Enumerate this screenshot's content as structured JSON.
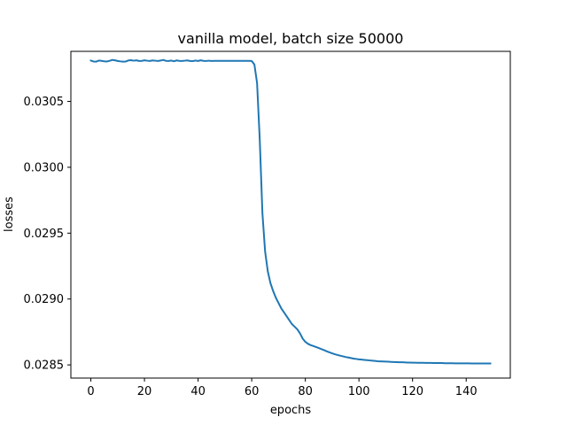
{
  "chart_data": {
    "type": "line",
    "title": "vanilla model, batch size 50000",
    "xlabel": "epochs",
    "ylabel": "losses",
    "xlim": [
      -7.45,
      156.45
    ],
    "ylim": [
      0.0284,
      0.03088
    ],
    "xticks": [
      0,
      20,
      40,
      60,
      80,
      100,
      120,
      140
    ],
    "xtick_labels": [
      "0",
      "20",
      "40",
      "60",
      "80",
      "100",
      "120",
      "140"
    ],
    "yticks": [
      0.0285,
      0.029,
      0.0295,
      0.03,
      0.0305
    ],
    "ytick_labels": [
      "0.0285",
      "0.0290",
      "0.0295",
      "0.0300",
      "0.0305"
    ],
    "grid": false,
    "line_color": "#1f77b4",
    "x": [
      0,
      1,
      2,
      3,
      4,
      5,
      6,
      7,
      8,
      9,
      10,
      11,
      12,
      13,
      14,
      15,
      16,
      17,
      18,
      19,
      20,
      21,
      22,
      23,
      24,
      25,
      26,
      27,
      28,
      29,
      30,
      31,
      32,
      33,
      34,
      35,
      36,
      37,
      38,
      39,
      40,
      41,
      42,
      43,
      44,
      45,
      46,
      47,
      48,
      49,
      50,
      51,
      52,
      53,
      54,
      55,
      56,
      57,
      58,
      59,
      60,
      61,
      62,
      63,
      64,
      65,
      66,
      67,
      68,
      69,
      70,
      71,
      72,
      73,
      74,
      75,
      76,
      77,
      78,
      79,
      80,
      81,
      82,
      83,
      84,
      85,
      86,
      87,
      88,
      89,
      90,
      91,
      92,
      93,
      94,
      95,
      96,
      97,
      98,
      99,
      100,
      101,
      102,
      103,
      104,
      105,
      106,
      107,
      108,
      109,
      110,
      111,
      112,
      113,
      114,
      115,
      116,
      117,
      118,
      119,
      120,
      121,
      122,
      123,
      124,
      125,
      126,
      127,
      128,
      129,
      130,
      131,
      132,
      133,
      134,
      135,
      136,
      137,
      138,
      139,
      140,
      141,
      142,
      143,
      144,
      145,
      146,
      147,
      148,
      149
    ],
    "y": [
      0.03081,
      0.030803,
      0.030802,
      0.03081,
      0.030808,
      0.030804,
      0.030803,
      0.030808,
      0.030815,
      0.030812,
      0.030807,
      0.030804,
      0.030802,
      0.030803,
      0.030811,
      0.030813,
      0.030809,
      0.030812,
      0.030807,
      0.030808,
      0.030812,
      0.030809,
      0.030807,
      0.030811,
      0.030809,
      0.030807,
      0.03081,
      0.030815,
      0.030808,
      0.030807,
      0.03081,
      0.030805,
      0.030811,
      0.030808,
      0.030807,
      0.030809,
      0.030811,
      0.030807,
      0.030806,
      0.03081,
      0.030807,
      0.030812,
      0.030808,
      0.030807,
      0.030809,
      0.030807,
      0.030808,
      0.030808,
      0.030808,
      0.030808,
      0.030808,
      0.030808,
      0.030808,
      0.030808,
      0.030808,
      0.030808,
      0.030808,
      0.030808,
      0.030808,
      0.030808,
      0.030807,
      0.03078,
      0.03064,
      0.03021,
      0.02965,
      0.02936,
      0.02921,
      0.02912,
      0.02906,
      0.02901,
      0.02897,
      0.02893,
      0.0289,
      0.02887,
      0.02884,
      0.02881,
      0.02879,
      0.02877,
      0.02874,
      0.0287,
      0.028675,
      0.02866,
      0.02865,
      0.028643,
      0.028636,
      0.028628,
      0.02862,
      0.028612,
      0.028603,
      0.028595,
      0.028588,
      0.028581,
      0.028575,
      0.02857,
      0.028565,
      0.02856,
      0.028556,
      0.028552,
      0.028548,
      0.028545,
      0.028542,
      0.02854,
      0.028538,
      0.028536,
      0.028534,
      0.028532,
      0.02853,
      0.028528,
      0.028527,
      0.028526,
      0.028525,
      0.028524,
      0.028523,
      0.028522,
      0.028521,
      0.02852,
      0.02852,
      0.028519,
      0.028518,
      0.028518,
      0.028517,
      0.028517,
      0.028516,
      0.028516,
      0.028516,
      0.028515,
      0.028515,
      0.028515,
      0.028514,
      0.028514,
      0.028514,
      0.028514,
      0.028513,
      0.028513,
      0.028513,
      0.028513,
      0.028512,
      0.028512,
      0.028512,
      0.028512,
      0.028512,
      0.028512,
      0.028511,
      0.028511,
      0.028511,
      0.028511,
      0.028511,
      0.028511,
      0.028511,
      0.028511
    ]
  }
}
